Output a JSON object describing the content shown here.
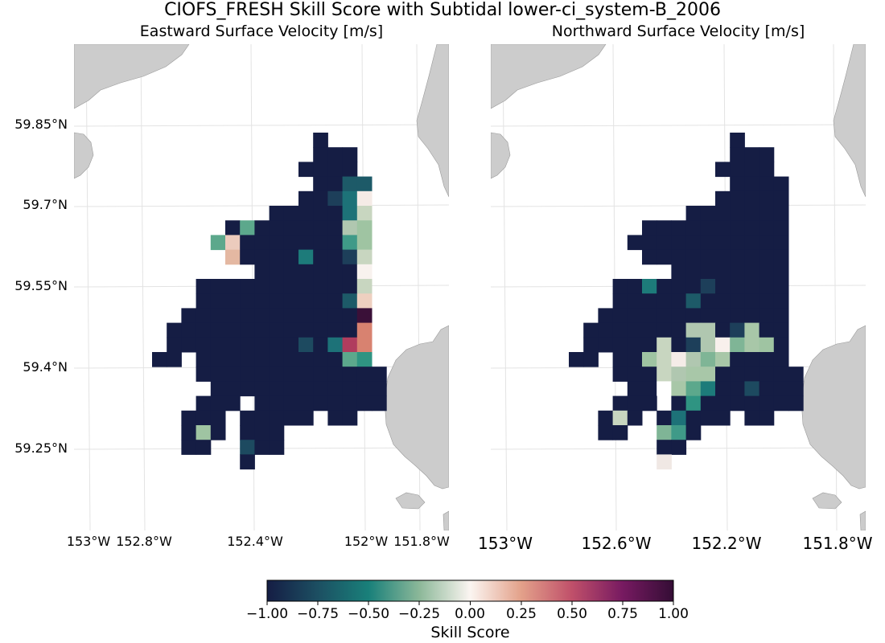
{
  "figure": {
    "title": "CIOFS_FRESH Skill Score with Subtidal lower-ci_system-B_2006"
  },
  "panels": [
    {
      "id": "left",
      "title": "Eastward Surface Velocity [m/s]",
      "lat_labels": [
        "59.85°N",
        "59.7°N",
        "59.55°N",
        "59.4°N",
        "59.25°N"
      ],
      "lon_labels": [
        "153°W",
        "152.8°W",
        "152.4°W",
        "152°W",
        "151.8°W"
      ]
    },
    {
      "id": "right",
      "title": "Northward Surface Velocity [m/s]",
      "lat_labels": [],
      "lon_labels": [
        "153°W",
        "152.6°W",
        "152.2°W",
        "151.8°W"
      ]
    }
  ],
  "colorbar": {
    "label": "Skill Score",
    "colormap": "curl",
    "range": [
      -1.0,
      1.0
    ],
    "ticks": [
      "−1.00",
      "−0.75",
      "−0.50",
      "−0.25",
      "0.00",
      "0.25",
      "0.50",
      "0.75",
      "1.00"
    ]
  },
  "colors": {
    "land": "#cccccc",
    "grid": "#e3e3e3"
  }
}
